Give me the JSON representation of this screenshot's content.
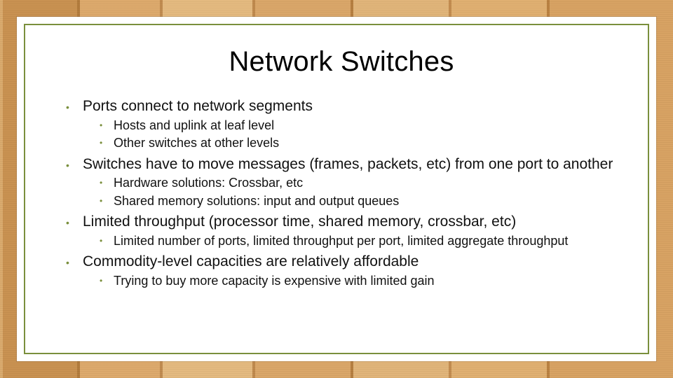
{
  "slide": {
    "title": "Network Switches",
    "title_fontsize": 40,
    "title_color": "#000000",
    "border_color": "#7a8f3c",
    "background_color": "#ffffff",
    "bullet_color": "#7a8f3c",
    "level1_fontsize": 21,
    "level2_fontsize": 18,
    "text_color": "#111111",
    "items": [
      {
        "text": "Ports connect to network segments",
        "children": [
          {
            "text": "Hosts and uplink at leaf level"
          },
          {
            "text": "Other switches at other levels"
          }
        ]
      },
      {
        "text": "Switches have to move messages (frames, packets, etc) from one port to another",
        "children": [
          {
            "text": "Hardware solutions: Crossbar, etc"
          },
          {
            "text": "Shared memory solutions: input and output queues"
          }
        ]
      },
      {
        "text": "Limited throughput (processor time, shared memory, crossbar, etc)",
        "children": [
          {
            "text": "Limited number of ports, limited throughput per port, limited aggregate throughput"
          }
        ]
      },
      {
        "text": "Commodity-level capacities are relatively affordable",
        "children": [
          {
            "text": "Trying to buy more capacity is expensive with limited gain"
          }
        ]
      }
    ]
  },
  "wood_background": {
    "plank_colors": [
      "#d9a96b",
      "#c8904f",
      "#dca86a",
      "#e3b97e",
      "#d9a567",
      "#e0b478",
      "#dfae6f",
      "#d7a161"
    ],
    "seam_color": "#b17a3a"
  }
}
